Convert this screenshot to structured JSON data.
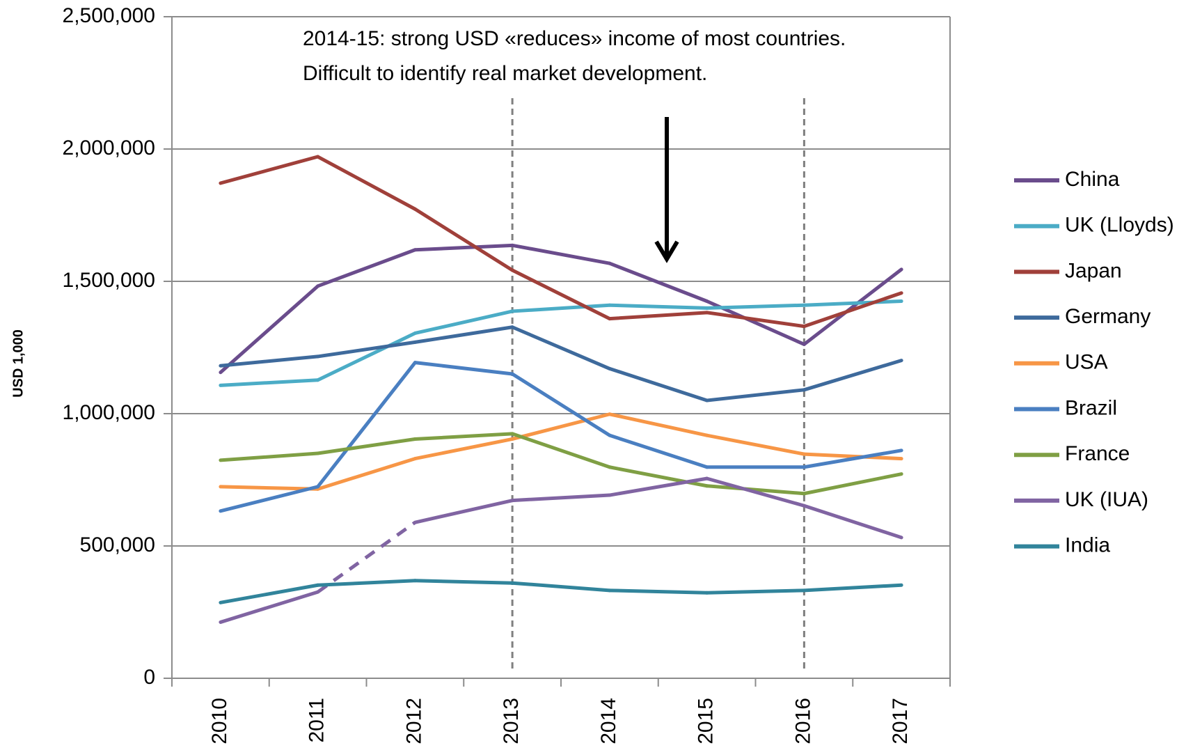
{
  "chart_data": {
    "type": "line",
    "y_label": "USD 1,000",
    "annotation": [
      "2014-15: strong USD «reduces» income of most countries.",
      "Difficult to identify real market development."
    ],
    "categories": [
      "2010",
      "2011",
      "2012",
      "2013",
      "2014",
      "2015",
      "2016",
      "2017"
    ],
    "ylim": [
      0,
      2500000
    ],
    "yticks": [
      0,
      {
        "value": 500000,
        "label": "500,000"
      },
      {
        "value": 1000000,
        "label": "1,000,000"
      },
      {
        "value": 1500000,
        "label": "1,500,000"
      },
      {
        "value": 2000000,
        "label": "2,000,000"
      },
      {
        "value": 2500000,
        "label": "2,500,000"
      }
    ],
    "grid": true,
    "reference_lines": [
      3,
      6
    ],
    "legend": "right",
    "series": [
      {
        "name": "China",
        "color": "#6a4c8c",
        "values": [
          1156000,
          1482000,
          1619000,
          1636000,
          1568000,
          1425000,
          1262000,
          1545000
        ]
      },
      {
        "name": "UK (Lloyds)",
        "color": "#4bacc6",
        "values": [
          1107000,
          1127000,
          1304000,
          1387000,
          1410000,
          1399000,
          1410000,
          1425000
        ]
      },
      {
        "name": "Japan",
        "color": "#a0403a",
        "values": [
          1871000,
          1971000,
          1773000,
          1542000,
          1359000,
          1382000,
          1330000,
          1456000
        ]
      },
      {
        "name": "Germany",
        "color": "#3e6a9c",
        "values": [
          1181000,
          1216000,
          1270000,
          1327000,
          1170000,
          1050000,
          1090000,
          1201000
        ]
      },
      {
        "name": "USA",
        "color": "#f79646",
        "values": [
          724000,
          715000,
          830000,
          904000,
          998000,
          918000,
          847000,
          830000
        ]
      },
      {
        "name": "Brazil",
        "color": "#4a7fc1",
        "values": [
          632000,
          724000,
          1193000,
          1150000,
          918000,
          798000,
          798000,
          861000
        ]
      },
      {
        "name": "France",
        "color": "#7f9f44",
        "values": [
          824000,
          850000,
          904000,
          924000,
          798000,
          727000,
          698000,
          772000
        ]
      },
      {
        "name": "UK (IUA)",
        "color": "#8064a2",
        "values": [
          212000,
          326000,
          589000,
          672000,
          692000,
          755000,
          652000,
          532000
        ],
        "dashed_segments": [
          1
        ]
      },
      {
        "name": "India",
        "color": "#31849b",
        "values": [
          286000,
          352000,
          369000,
          360000,
          332000,
          323000,
          332000,
          352000
        ]
      }
    ]
  }
}
